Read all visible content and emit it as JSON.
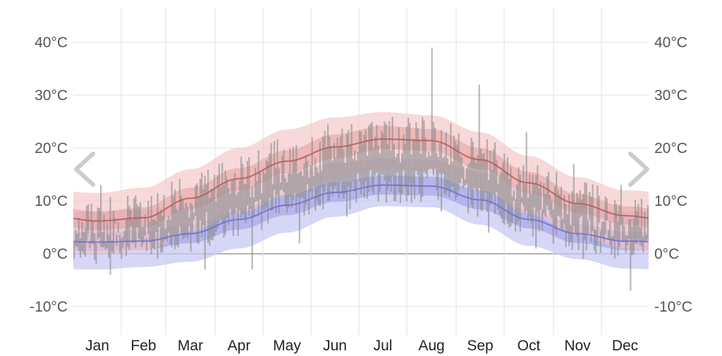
{
  "chart_data": {
    "type": "area",
    "title": "",
    "xlabel": "",
    "ylabel": "",
    "ylim": [
      -15,
      46
    ],
    "yticks": [
      40,
      30,
      20,
      10,
      0,
      -10
    ],
    "ytick_labels": [
      "40°C",
      "30°C",
      "20°C",
      "10°C",
      "0°C",
      "-10°C"
    ],
    "categories": [
      "Jan",
      "Feb",
      "Mar",
      "Apr",
      "May",
      "Jun",
      "Jul",
      "Aug",
      "Sep",
      "Oct",
      "Nov",
      "Dec"
    ],
    "grid": true,
    "series": [
      {
        "role": "average-high",
        "color": "#b85a5a",
        "values": [
          6.2,
          6.8,
          10.5,
          14.2,
          17.5,
          20.2,
          21.7,
          21.4,
          17.8,
          13.4,
          9.5,
          7.2
        ],
        "band_inner_low": [
          4.5,
          5.0,
          8.5,
          12.0,
          15.2,
          18.0,
          19.8,
          19.4,
          16.0,
          11.5,
          7.8,
          5.5
        ],
        "band_inner_high": [
          8.0,
          8.8,
          12.5,
          16.2,
          19.6,
          22.6,
          24.2,
          23.6,
          20.0,
          15.5,
          11.3,
          9.0
        ],
        "band_outer_low": [
          0.0,
          0.5,
          4.2,
          7.8,
          11.0,
          14.2,
          16.0,
          15.5,
          12.2,
          7.5,
          3.5,
          1.0
        ],
        "band_outer_high": [
          11.5,
          12.5,
          16.0,
          20.0,
          23.5,
          25.8,
          26.8,
          26.2,
          23.0,
          18.5,
          14.5,
          12.0
        ]
      },
      {
        "role": "average-low",
        "color": "#6f6fd2",
        "values": [
          2.2,
          2.4,
          3.8,
          6.5,
          9.2,
          11.6,
          13.0,
          12.8,
          10.2,
          6.5,
          3.8,
          2.4
        ],
        "band_inner_low": [
          0.5,
          0.8,
          2.0,
          4.6,
          7.3,
          9.8,
          11.2,
          11.0,
          8.4,
          4.8,
          2.0,
          0.7
        ],
        "band_inner_high": [
          4.0,
          4.3,
          5.6,
          8.4,
          11.2,
          13.5,
          14.8,
          14.6,
          12.0,
          8.2,
          5.6,
          4.2
        ],
        "band_outer_low": [
          -3.0,
          -2.5,
          -1.5,
          1.0,
          4.0,
          7.0,
          9.0,
          8.8,
          5.5,
          1.5,
          -1.0,
          -2.8
        ],
        "band_outer_high": [
          8.0,
          8.3,
          9.5,
          12.5,
          15.0,
          17.2,
          18.0,
          17.8,
          15.5,
          12.0,
          9.0,
          8.0
        ]
      }
    ],
    "daily_observations": {
      "color": "#8a8a8a",
      "high": [
        9.5,
        7.0,
        11.5,
        8.2,
        14.2,
        12.8,
        16.4,
        19.0,
        20.7,
        25.9,
        22.0,
        27.0,
        30.6,
        22.3,
        12.0,
        14.7
      ],
      "low": [
        0.1,
        -2.3,
        -1.2,
        0.6,
        1.8,
        2.0,
        6.0,
        8.7,
        7.0,
        10.0,
        10.6,
        8.5,
        11.0,
        6.5,
        3.6,
        -5.0
      ],
      "peaks": [
        13.0,
        10.0,
        13.0,
        17.0,
        20.0,
        22.0,
        25.0,
        39.0,
        32.0,
        23.0,
        17.0,
        13.0
      ],
      "troughs": [
        -4.0,
        -1.0,
        -3.0,
        -3.0,
        2.0,
        7.0,
        10.0,
        8.0,
        4.0,
        1.0,
        -1.0,
        -7.0
      ]
    }
  },
  "colors": {
    "grid": "#e0e0e0",
    "zero_line": "#999999",
    "high_band_outer": "#f3c4c4",
    "low_band_outer": "#c8c8f3",
    "nav_arrow": "#cccccc"
  },
  "navigation": {
    "prev_icon": "chevron-left-icon",
    "next_icon": "chevron-right-icon"
  }
}
